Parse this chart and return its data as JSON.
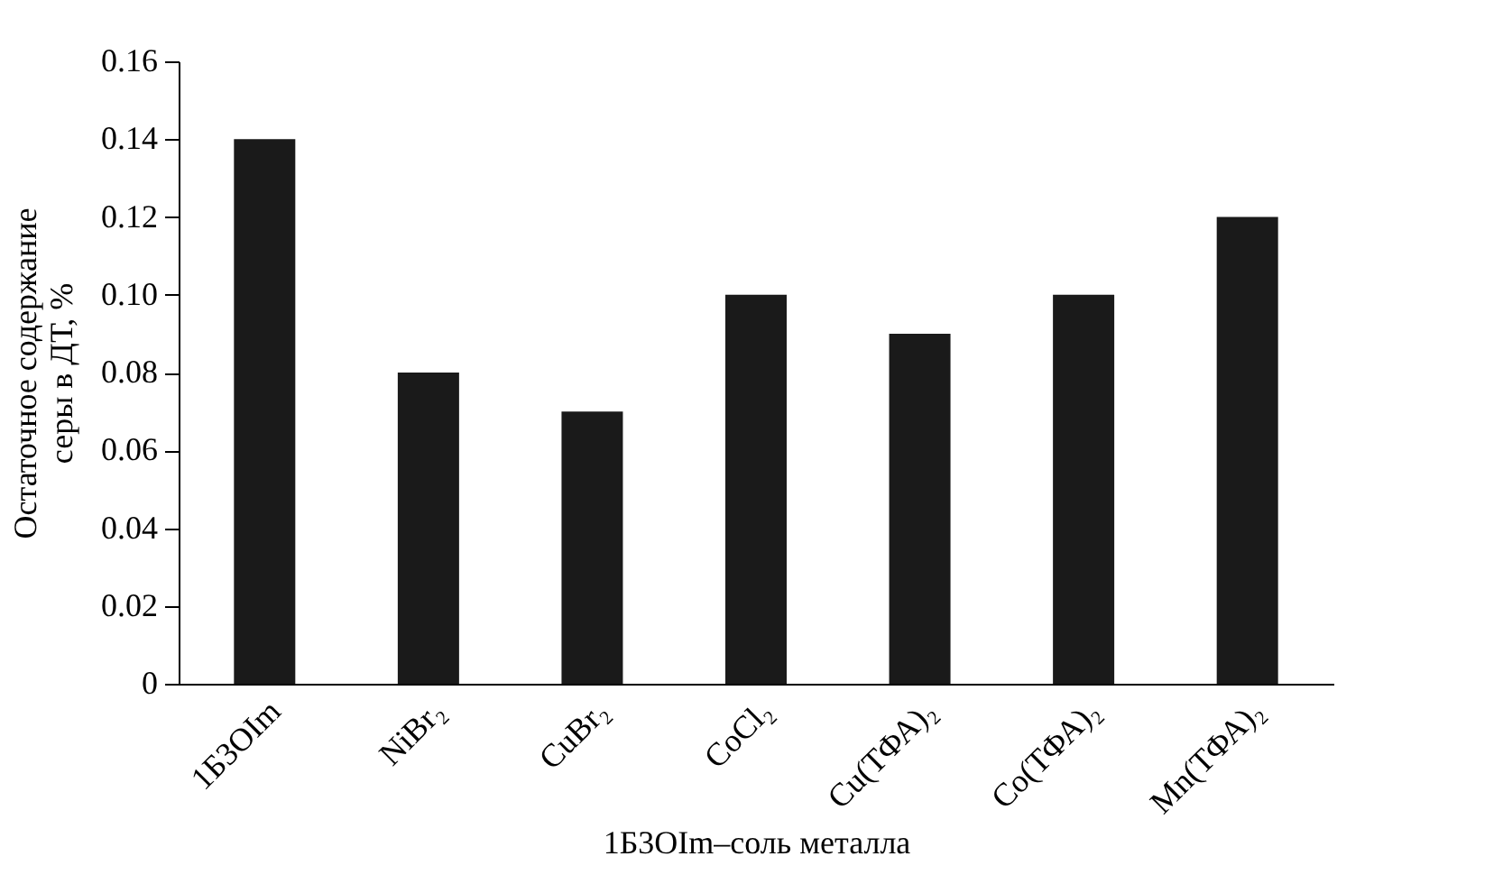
{
  "chart_data": {
    "type": "bar",
    "xlabel": "1Б3OIm–соль металла",
    "ylabel": "Остаточное содержание\nсеры в ДТ, %",
    "categories": [
      "1Б3OIm",
      "NiBr₂",
      "CuBr₂",
      "CoCl₂",
      "Cu(ТФА)₂",
      "Co(ТФА)₂",
      "Mn(ТФА)₂"
    ],
    "values": [
      0.14,
      0.08,
      0.07,
      0.1,
      0.09,
      0.1,
      0.12
    ],
    "color": "#1a1a1a",
    "ylim": [
      0,
      0.16
    ],
    "yticks": [
      0,
      0.02,
      0.04,
      0.06,
      0.08,
      {
        "value": 0.1,
        "label": "0.10"
      },
      0.12,
      0.14,
      0.16
    ],
    "grid": false
  }
}
